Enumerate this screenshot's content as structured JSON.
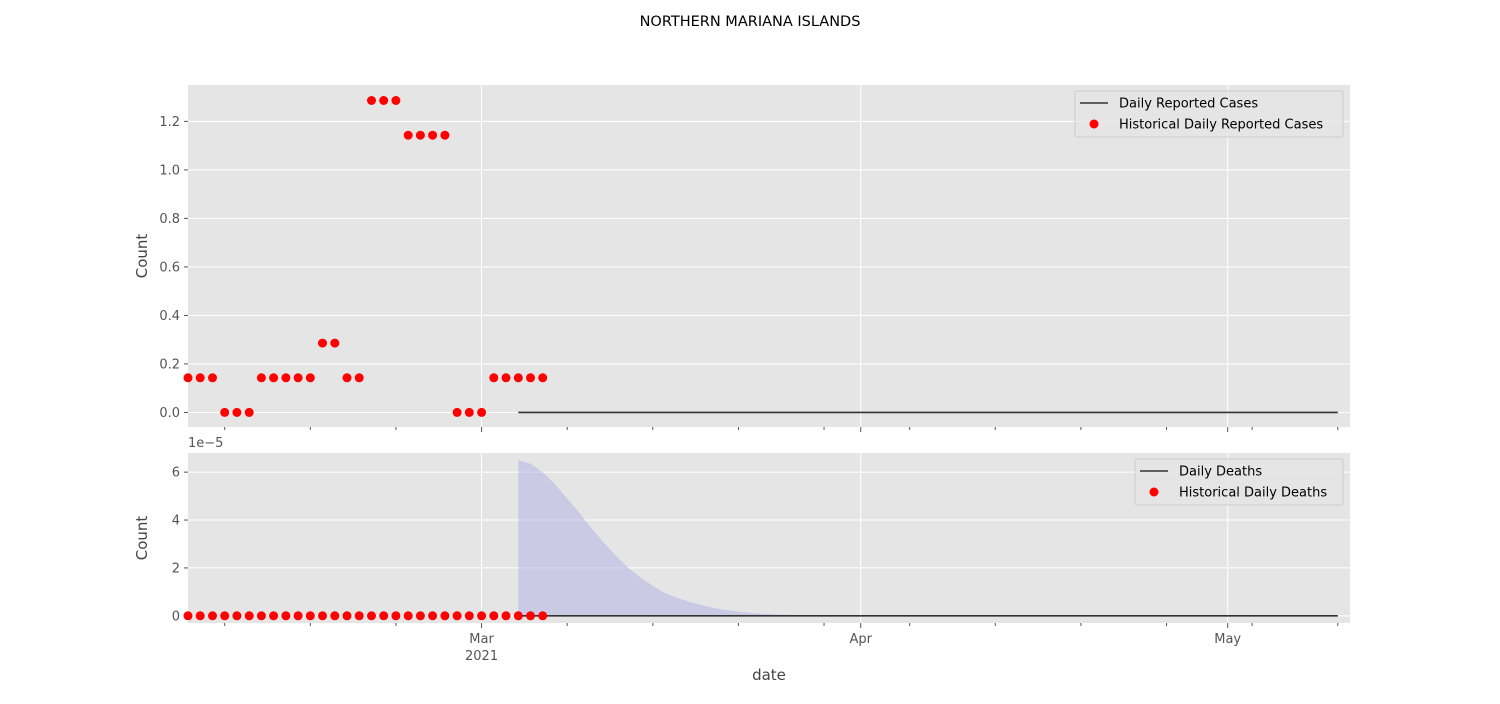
{
  "figure": {
    "title": "NORTHERN MARIANA ISLANDS",
    "xlabel": "date"
  },
  "colors": {
    "panel_bg": "#e5e5e5",
    "grid": "#ffffff",
    "line": "#333333",
    "points": "#ff0000",
    "band": "#b0b0e6",
    "tick_text": "#555555"
  },
  "chart_data": [
    {
      "type": "scatter",
      "ylabel": "Count",
      "ylim": [
        -0.06,
        1.35
      ],
      "yticks": [
        0.0,
        0.2,
        0.4,
        0.6,
        0.8,
        1.0,
        1.2
      ],
      "ytick_labels": [
        "0.0",
        "0.2",
        "0.4",
        "0.6",
        "0.8",
        "1.0",
        "1.2"
      ],
      "y_offset_label": "",
      "grid": true,
      "legend_position": "upper right",
      "series": [
        {
          "name": "Daily Reported Cases",
          "kind": "line",
          "x": [
            "2021-03-04",
            "2021-05-10"
          ],
          "y": [
            0,
            0
          ]
        },
        {
          "name": "Historical Daily Reported Cases",
          "kind": "scatter",
          "x": [
            "2021-02-05",
            "2021-02-06",
            "2021-02-07",
            "2021-02-08",
            "2021-02-09",
            "2021-02-10",
            "2021-02-11",
            "2021-02-12",
            "2021-02-13",
            "2021-02-14",
            "2021-02-15",
            "2021-02-16",
            "2021-02-17",
            "2021-02-18",
            "2021-02-19",
            "2021-02-20",
            "2021-02-21",
            "2021-02-22",
            "2021-02-23",
            "2021-02-24",
            "2021-02-25",
            "2021-02-26",
            "2021-02-27",
            "2021-02-28",
            "2021-03-01",
            "2021-03-02",
            "2021-03-03",
            "2021-03-04",
            "2021-03-05",
            "2021-03-06"
          ],
          "y": [
            0.143,
            0.143,
            0.143,
            0,
            0,
            0,
            0.143,
            0.143,
            0.143,
            0.143,
            0.143,
            0.286,
            0.286,
            0.143,
            0.143,
            1.286,
            1.286,
            1.286,
            1.143,
            1.143,
            1.143,
            1.143,
            0,
            0,
            0,
            0.143,
            0.143,
            0.143,
            0.143,
            0.143
          ]
        }
      ]
    },
    {
      "type": "scatter",
      "ylabel": "Count",
      "ylim": [
        -0.3,
        6.8
      ],
      "yticks": [
        0,
        2,
        4,
        6
      ],
      "ytick_labels": [
        "0",
        "2",
        "4",
        "6"
      ],
      "y_offset_label": "1e−5",
      "grid": true,
      "legend_position": "upper right",
      "band": {
        "x": [
          "2021-03-04",
          "2021-03-05",
          "2021-03-06",
          "2021-03-07",
          "2021-03-08",
          "2021-03-09",
          "2021-03-10",
          "2021-03-11",
          "2021-03-12",
          "2021-03-13",
          "2021-03-14",
          "2021-03-15",
          "2021-03-16",
          "2021-03-17",
          "2021-03-18",
          "2021-03-19",
          "2021-03-20",
          "2021-03-21",
          "2021-03-22",
          "2021-03-23",
          "2021-03-24",
          "2021-03-26",
          "2021-03-28",
          "2021-03-30",
          "2021-04-01"
        ],
        "lower": [
          0,
          0,
          0,
          0,
          0,
          0,
          0,
          0,
          0,
          0,
          0,
          0,
          0,
          0,
          0,
          0,
          0,
          0,
          0,
          0,
          0,
          0,
          0,
          0,
          0
        ],
        "upper": [
          6.5,
          6.35,
          6.0,
          5.5,
          4.9,
          4.3,
          3.65,
          3.05,
          2.5,
          2.0,
          1.6,
          1.25,
          0.95,
          0.75,
          0.58,
          0.45,
          0.33,
          0.24,
          0.17,
          0.12,
          0.08,
          0.04,
          0.02,
          0.01,
          0
        ]
      },
      "series": [
        {
          "name": "Daily Deaths",
          "kind": "line",
          "x": [
            "2021-03-04",
            "2021-05-10"
          ],
          "y": [
            0,
            0
          ]
        },
        {
          "name": "Historical Daily Deaths",
          "kind": "scatter",
          "x": [
            "2021-02-05",
            "2021-02-06",
            "2021-02-07",
            "2021-02-08",
            "2021-02-09",
            "2021-02-10",
            "2021-02-11",
            "2021-02-12",
            "2021-02-13",
            "2021-02-14",
            "2021-02-15",
            "2021-02-16",
            "2021-02-17",
            "2021-02-18",
            "2021-02-19",
            "2021-02-20",
            "2021-02-21",
            "2021-02-22",
            "2021-02-23",
            "2021-02-24",
            "2021-02-25",
            "2021-02-26",
            "2021-02-27",
            "2021-02-28",
            "2021-03-01",
            "2021-03-02",
            "2021-03-03",
            "2021-03-04",
            "2021-03-05",
            "2021-03-06"
          ],
          "y": [
            0,
            0,
            0,
            0,
            0,
            0,
            0,
            0,
            0,
            0,
            0,
            0,
            0,
            0,
            0,
            0,
            0,
            0,
            0,
            0,
            0,
            0,
            0,
            0,
            0,
            0,
            0,
            0,
            0,
            0
          ]
        }
      ]
    }
  ],
  "x_axis": {
    "xlim": [
      "2021-02-05",
      "2021-05-11"
    ],
    "major_ticks": [
      {
        "date": "2021-03-01",
        "label": "Mar",
        "sublabel": "2021"
      },
      {
        "date": "2021-04-01",
        "label": "Apr",
        "sublabel": ""
      },
      {
        "date": "2021-05-01",
        "label": "May",
        "sublabel": ""
      }
    ],
    "minor_ticks": [
      "2021-02-08",
      "2021-02-15",
      "2021-02-22",
      "2021-03-08",
      "2021-03-15",
      "2021-03-22",
      "2021-03-29",
      "2021-04-05",
      "2021-04-12",
      "2021-04-19",
      "2021-04-26",
      "2021-05-03",
      "2021-05-10"
    ]
  }
}
